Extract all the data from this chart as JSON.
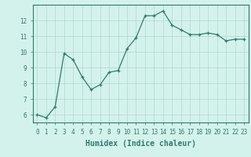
{
  "x": [
    0,
    1,
    2,
    3,
    4,
    5,
    6,
    7,
    8,
    9,
    10,
    11,
    12,
    13,
    14,
    15,
    16,
    17,
    18,
    19,
    20,
    21,
    22,
    23
  ],
  "y": [
    6.0,
    5.8,
    6.5,
    9.9,
    9.5,
    8.4,
    7.6,
    7.9,
    8.7,
    8.8,
    10.2,
    10.9,
    12.3,
    12.3,
    12.6,
    11.7,
    11.4,
    11.1,
    11.1,
    11.2,
    11.1,
    10.7,
    10.8,
    10.8
  ],
  "line_color": "#2d7d6e",
  "marker": "+",
  "marker_size": 3,
  "bg_color": "#d4f2ec",
  "grid_color": "#b0d8d0",
  "xlabel": "Humidex (Indice chaleur)",
  "xlim": [
    -0.5,
    23.5
  ],
  "ylim": [
    5.5,
    13.0
  ],
  "yticks": [
    6,
    7,
    8,
    9,
    10,
    11,
    12
  ],
  "xticks": [
    0,
    1,
    2,
    3,
    4,
    5,
    6,
    7,
    8,
    9,
    10,
    11,
    12,
    13,
    14,
    15,
    16,
    17,
    18,
    19,
    20,
    21,
    22,
    23
  ],
  "tick_fontsize": 5.5,
  "xlabel_fontsize": 7,
  "linewidth": 0.9,
  "markeredgewidth": 0.9
}
